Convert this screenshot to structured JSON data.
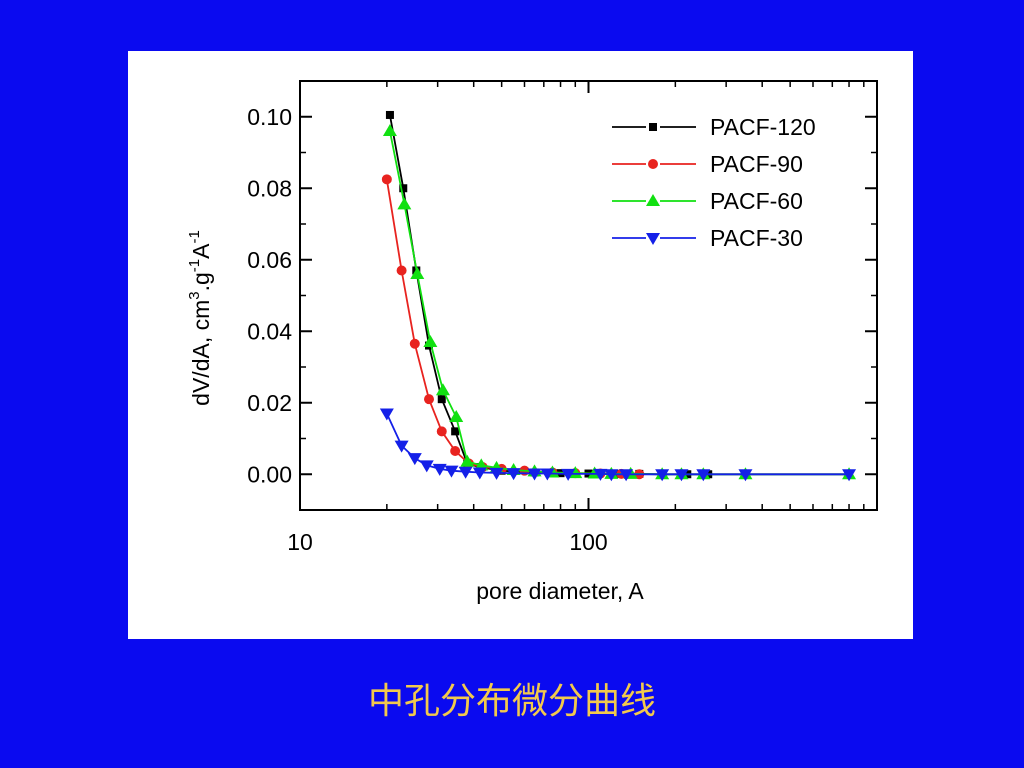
{
  "caption": "中孔分布微分曲线",
  "colors": {
    "background": "#0A0AF0",
    "panel": "#FFFFFF",
    "caption": "#F2C94C"
  },
  "chart_data": {
    "type": "line",
    "title": "",
    "xlabel": "pore diameter, A",
    "ylabel": "dV/dA, cm3.g-1A-1",
    "ylabel_parts": {
      "base": "dV/dA, cm",
      "sup1": "3",
      "mid1": ".g",
      "sup2": "-1",
      "mid2": "A",
      "sup3": "-1"
    },
    "x_scale": "log",
    "xlim": [
      10,
      1000
    ],
    "ylim": [
      -0.01,
      0.11
    ],
    "x_ticks": [
      10,
      100
    ],
    "x_tick_labels": [
      "10",
      "100"
    ],
    "y_ticks": [
      0.0,
      0.02,
      0.04,
      0.06,
      0.08,
      0.1
    ],
    "y_tick_labels": [
      "0.00",
      "0.02",
      "0.04",
      "0.06",
      "0.08",
      "0.10"
    ],
    "grid": false,
    "legend_position": "top-right",
    "series": [
      {
        "name": "PACF-120",
        "color": "#000000",
        "marker": "square",
        "x": [
          20.5,
          22.8,
          25.3,
          28.0,
          31.0,
          34.5,
          38.0,
          42.0,
          50,
          65,
          80,
          100,
          125,
          150,
          180,
          220,
          260,
          350,
          800
        ],
        "y": [
          0.1005,
          0.08,
          0.057,
          0.036,
          0.021,
          0.012,
          0.003,
          0.002,
          0.001,
          0.0005,
          0.0003,
          0.0002,
          0.0001,
          0.0001,
          0.0,
          0.0,
          0.0,
          0.0,
          0.0
        ]
      },
      {
        "name": "PACF-90",
        "color": "#E8231F",
        "marker": "circle",
        "x": [
          20.0,
          22.5,
          25.0,
          28.0,
          31.0,
          34.5,
          38.5,
          43,
          50,
          60,
          75,
          90,
          110,
          130,
          150
        ],
        "y": [
          0.0825,
          0.057,
          0.0365,
          0.021,
          0.012,
          0.0065,
          0.003,
          0.002,
          0.0015,
          0.001,
          0.0005,
          0.0003,
          0.0002,
          0.0001,
          0.0
        ]
      },
      {
        "name": "PACF-60",
        "color": "#11E011",
        "marker": "triangle-up",
        "x": [
          20.5,
          23.0,
          25.5,
          28.3,
          31.3,
          34.8,
          38.0,
          42.5,
          48,
          55,
          65,
          75,
          90,
          105,
          120,
          140,
          180,
          210,
          250,
          350,
          800
        ],
        "y": [
          0.096,
          0.0755,
          0.056,
          0.037,
          0.0235,
          0.016,
          0.0035,
          0.0025,
          0.0018,
          0.0012,
          0.0008,
          0.0005,
          0.0003,
          0.0002,
          0.0001,
          0.0001,
          0.0,
          0.0,
          0.0,
          0.0,
          0.0
        ]
      },
      {
        "name": "PACF-30",
        "color": "#1420E8",
        "marker": "triangle-down",
        "x": [
          20.0,
          22.5,
          25.0,
          27.5,
          30.5,
          33.5,
          37.5,
          42.0,
          48,
          55,
          65,
          72,
          85,
          110,
          120,
          135,
          180,
          210,
          250,
          350,
          800
        ],
        "y": [
          0.017,
          0.008,
          0.0045,
          0.0025,
          0.0015,
          0.001,
          0.0007,
          0.0005,
          0.0004,
          0.0003,
          0.0002,
          0.0002,
          0.0001,
          0.0001,
          0.0,
          0.0,
          0.0,
          0.0,
          0.0,
          0.0,
          0.0
        ]
      }
    ]
  }
}
